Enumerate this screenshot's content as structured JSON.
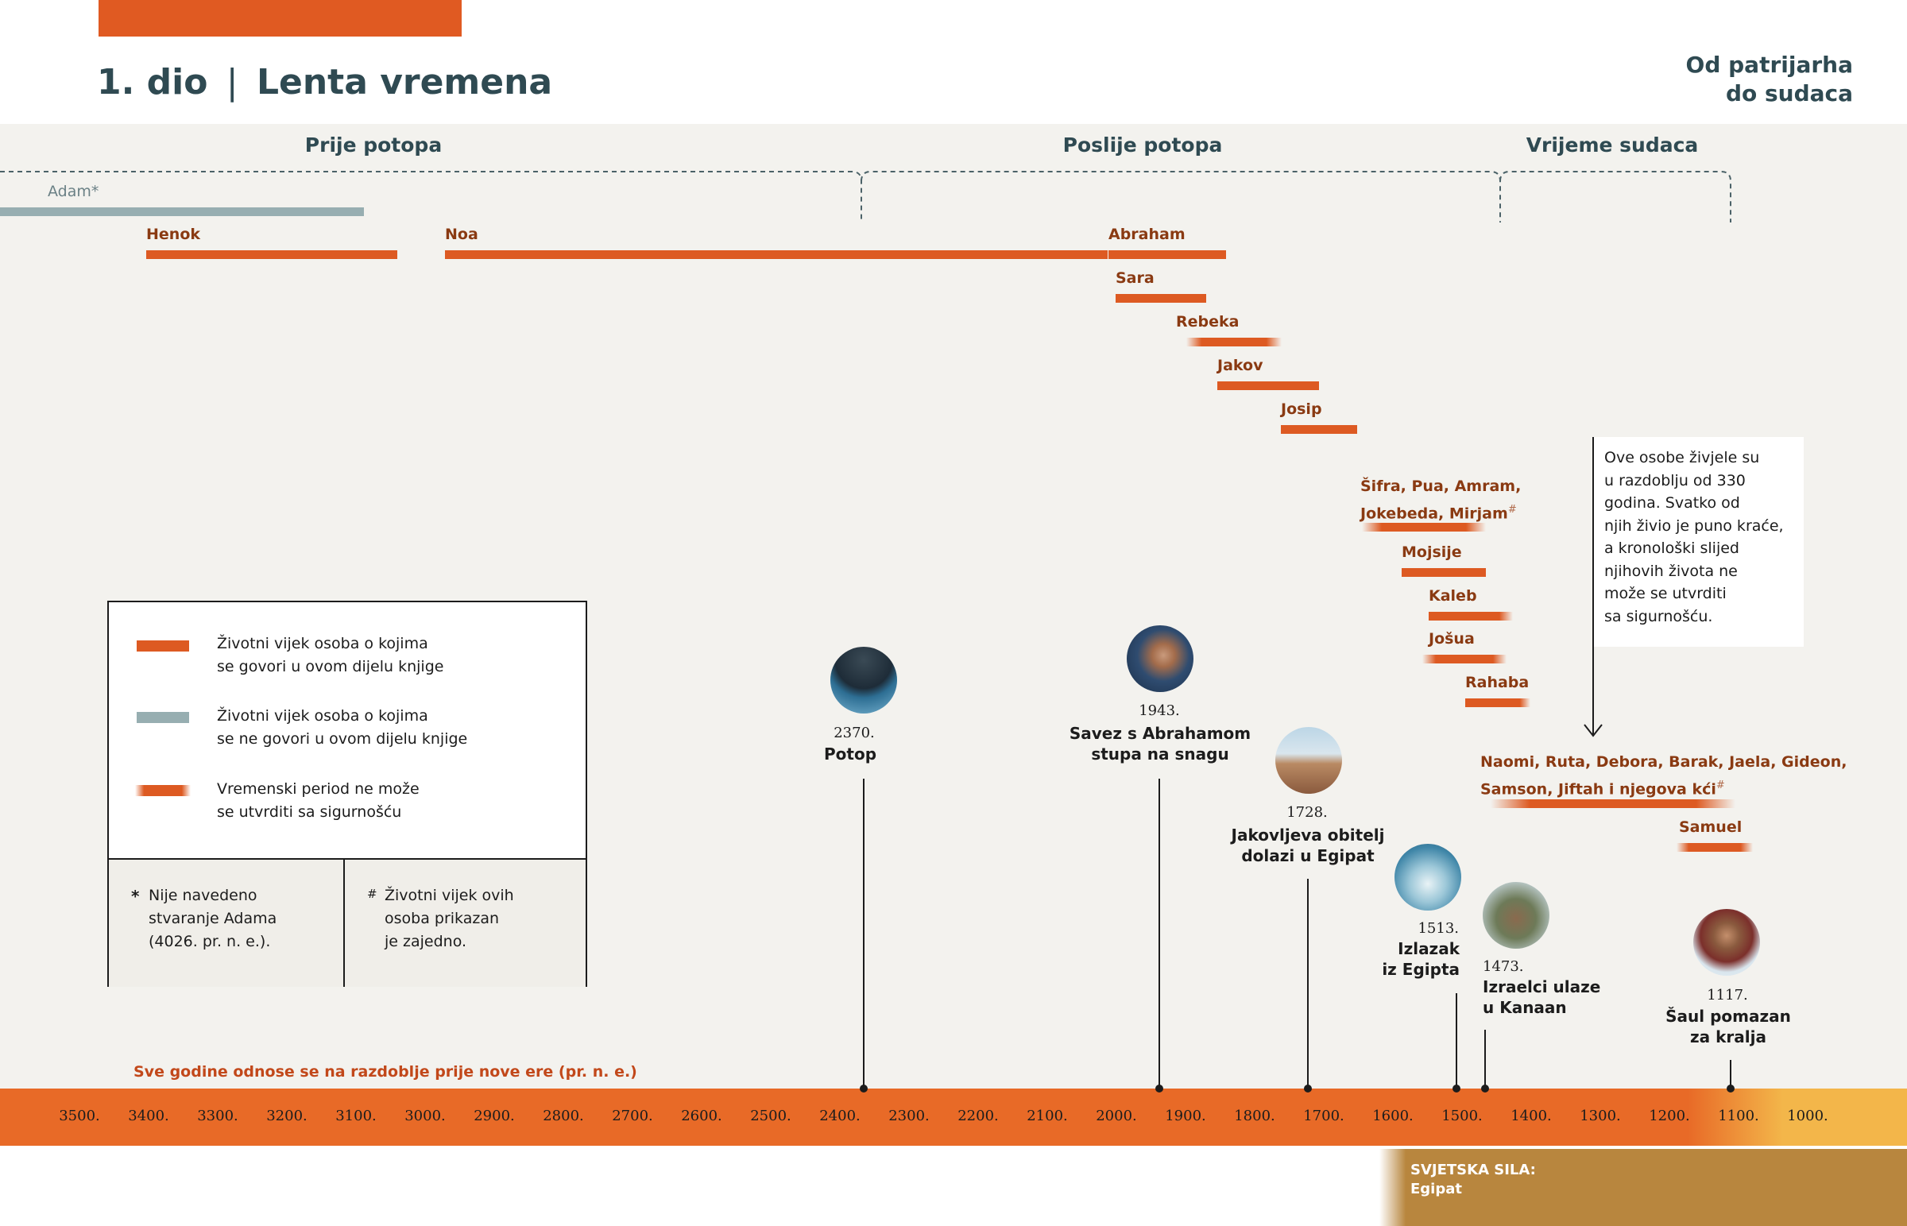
{
  "header": {
    "section": "1. dio",
    "separator": "|",
    "title": "Lenta vremena",
    "right_title_line1": "Od patrijarha",
    "right_title_line2": "do sudaca"
  },
  "colors": {
    "heading": "#2f4a52",
    "person_name": "#8a3a12",
    "lifespan_bar": "#dd5a22",
    "uncertain_bar": "#dd5a22",
    "other_lifespan_bar": "#97aeb1",
    "axis_band": "#e86a27",
    "axis_band_end": "#f3b64a",
    "world_power_band": "#b8863e"
  },
  "periods": [
    {
      "label": "Prije potopa"
    },
    {
      "label": "Poslije potopa"
    },
    {
      "label": "Vrijeme sudaca"
    }
  ],
  "people": [
    {
      "name": "Adam*",
      "style": "grey"
    },
    {
      "name": "Henok",
      "style": "solid"
    },
    {
      "name": "Noa",
      "style": "solid"
    },
    {
      "name": "Abraham",
      "style": "solid"
    },
    {
      "name": "Sara",
      "style": "solid"
    },
    {
      "name": "Rebeka",
      "style": "uncertain"
    },
    {
      "name": "Jakov",
      "style": "solid"
    },
    {
      "name": "Josip",
      "style": "solid"
    },
    {
      "name": "Šifra, Pua, Amram,",
      "name2": "Jokebeda, Mirjam",
      "mark": "#",
      "style": "uncertain"
    },
    {
      "name": "Mojsije",
      "style": "solid"
    },
    {
      "name": "Kaleb",
      "style": "uncertain"
    },
    {
      "name": "Jošua",
      "style": "uncertain"
    },
    {
      "name": "Rahaba",
      "style": "uncertain"
    },
    {
      "name": "Naomi, Ruta, Debora, Barak, Jaela, Gideon,",
      "name2": "Samson, Jiftah i njegova kći",
      "mark": "#",
      "style": "uncertain"
    },
    {
      "name": "Samuel",
      "style": "uncertain"
    }
  ],
  "note": {
    "lines": [
      "Ove osobe živjele su",
      "u razdoblju od 330",
      "godina. Svatko od",
      "njih živio je puno kraće,",
      "a kronološki slijed",
      "njihovih života ne",
      "može se utvrditi",
      "sa sigurnošću."
    ]
  },
  "events": [
    {
      "year": "2370.",
      "title": "Potop",
      "icon": "flood-icon"
    },
    {
      "year": "1943.",
      "title": "Savez s Abrahamom\nstupa na snagu",
      "icon": "abraham-portrait-icon"
    },
    {
      "year": "1728.",
      "title": "Jakovljeva obitelj\ndolazi u Egipat",
      "icon": "egypt-pyramids-icon"
    },
    {
      "year": "1513.",
      "title": "Izlazak\niz Egipta",
      "icon": "red-sea-crossing-icon"
    },
    {
      "year": "1473.",
      "title": "Izraelci ulaze\nu Kanaan",
      "icon": "israelites-icon"
    },
    {
      "year": "1117.",
      "title": "Šaul pomazan\nza kralja",
      "icon": "saul-portrait-icon"
    }
  ],
  "legend": {
    "items": [
      {
        "text": "Životni vijek osoba o kojima\nse govori u ovom dijelu knjige",
        "swatch": "solid"
      },
      {
        "text": "Životni vijek osoba o kojima\nse ne govori u ovom dijelu knjige",
        "swatch": "grey"
      },
      {
        "text": "Vremenski period ne može\nse utvrditi sa sigurnošću",
        "swatch": "uncertain"
      }
    ],
    "footnote_star": {
      "mark": "*",
      "text": "Nije navedeno\nstvaranje Adama\n(4026. pr. n. e.)."
    },
    "footnote_hash": {
      "mark": "#",
      "text": "Životni vijek ovih\nosoba prikazan\nje zajedno."
    }
  },
  "axis": {
    "caption": "Sve godine odnose se na razdoblje prije nove ere (pr. n. e.)",
    "ticks": [
      "3500.",
      "3400.",
      "3300.",
      "3200.",
      "3100.",
      "3000.",
      "2900.",
      "2800.",
      "2700.",
      "2600.",
      "2500.",
      "2400.",
      "2300.",
      "2200.",
      "2100.",
      "2000.",
      "1900.",
      "1800.",
      "1700.",
      "1600.",
      "1500.",
      "1400.",
      "1300.",
      "1200.",
      "1100.",
      "1000."
    ]
  },
  "world_power": {
    "label": "SVJETSKA SILA:",
    "value": "Egipat"
  }
}
